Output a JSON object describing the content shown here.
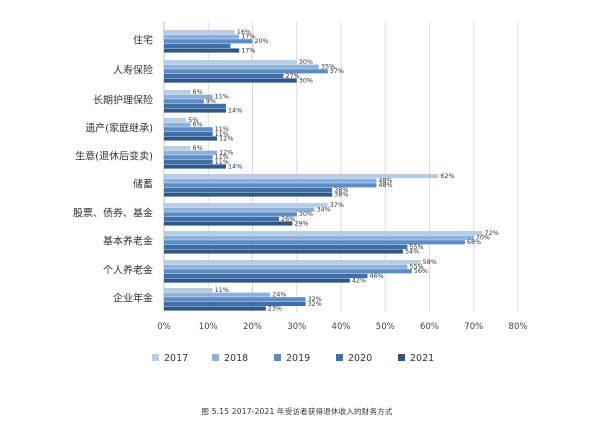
{
  "chart_data": {
    "type": "bar",
    "orientation": "horizontal",
    "categories": [
      "住宅",
      "人寿保险",
      "长期护理保险",
      "遗产(家庭继承)",
      "生意(退休后变卖)",
      "储蓄",
      "股票、债券、基金",
      "基本养老金",
      "个人养老金",
      "企业年金"
    ],
    "series": [
      {
        "name": "2017",
        "color": "#b7cde6",
        "values": [
          16,
          30,
          6,
          5,
          6,
          62,
          37,
          72,
          58,
          11
        ]
      },
      {
        "name": "2018",
        "color": "#8eb1d9",
        "values": [
          17,
          35,
          11,
          6,
          12,
          48,
          34,
          70,
          55,
          24
        ]
      },
      {
        "name": "2019",
        "color": "#5b8cc7",
        "values": [
          20,
          37,
          9,
          11,
          11,
          48,
          30,
          68,
          56,
          32
        ]
      },
      {
        "name": "2020",
        "color": "#3f6fa8",
        "values": [
          15,
          27,
          14,
          11,
          11,
          38,
          26,
          55,
          46,
          32
        ]
      },
      {
        "name": "2021",
        "color": "#2f5685",
        "values": [
          17,
          30,
          14,
          12,
          14,
          38,
          29,
          54,
          42,
          23
        ]
      }
    ],
    "labels": [
      [
        "16%",
        "30%",
        "6%",
        "5%",
        "6%",
        "62%",
        "37%",
        "72%",
        "58%",
        "11%"
      ],
      [
        "17%",
        "35%",
        "11%",
        "6%",
        "12%",
        "48%",
        "34%",
        "70%",
        "55%",
        "24%"
      ],
      [
        "20%",
        "37%",
        "9%",
        "11%",
        "11%",
        "48%",
        "30%",
        "68%",
        "56%",
        "32%"
      ],
      [
        "",
        "27%",
        "",
        "11%",
        "11%",
        "38%",
        "26%",
        "55%",
        "46%",
        "32%"
      ],
      [
        "17%",
        "30%",
        "14%",
        "12%",
        "14%",
        "38%",
        "29%",
        "54%",
        "42%",
        "23%"
      ]
    ],
    "x_ticks": [
      "0%",
      "10%",
      "20%",
      "30%",
      "40%",
      "50%",
      "60%",
      "70%",
      "80%"
    ],
    "xlim": [
      0,
      80
    ],
    "grid": true,
    "legend_position": "bottom"
  },
  "caption": "图 5.15 2017-2021 年受访者获得退休收入的财务方式"
}
